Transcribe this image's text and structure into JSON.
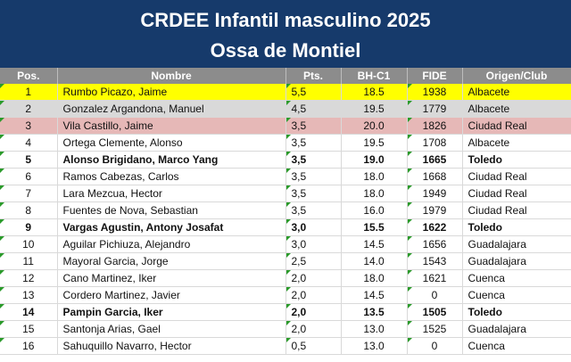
{
  "title": "CRDEE Infantil masculino  2025",
  "subtitle": "Ossa de Montiel",
  "colors": {
    "banner": "#163a6b",
    "header": "#8c8c8c",
    "first": "#ffff00",
    "second": "#d9d9d9",
    "third": "#e6b8b7",
    "marker": "#2a9a2a"
  },
  "headers": {
    "pos": "Pos.",
    "name": "Nombre",
    "pts": "Pts.",
    "bh": "BH-C1",
    "fide": "FIDE",
    "club": "Origen/Club"
  },
  "rows": [
    {
      "pos": "1",
      "name": "Rumbo Picazo, Jaime",
      "pts": "5,5",
      "bh": "18.5",
      "fide": "1938",
      "club": "Albacete",
      "bold": false,
      "hl": "first"
    },
    {
      "pos": "2",
      "name": "Gonzalez Argandona, Manuel",
      "pts": "4,5",
      "bh": "19.5",
      "fide": "1779",
      "club": "Albacete",
      "bold": false,
      "hl": "second"
    },
    {
      "pos": "3",
      "name": "Vila Castillo, Jaime",
      "pts": "3,5",
      "bh": "20.0",
      "fide": "1826",
      "club": "Ciudad Real",
      "bold": false,
      "hl": "third"
    },
    {
      "pos": "4",
      "name": "Ortega Clemente, Alonso",
      "pts": "3,5",
      "bh": "19.5",
      "fide": "1708",
      "club": "Albacete",
      "bold": false,
      "hl": ""
    },
    {
      "pos": "5",
      "name": "Alonso Brigidano, Marco Yang",
      "pts": "3,5",
      "bh": "19.0",
      "fide": "1665",
      "club": "Toledo",
      "bold": true,
      "hl": ""
    },
    {
      "pos": "6",
      "name": "Ramos Cabezas, Carlos",
      "pts": "3,5",
      "bh": "18.0",
      "fide": "1668",
      "club": "Ciudad Real",
      "bold": false,
      "hl": ""
    },
    {
      "pos": "7",
      "name": "Lara Mezcua, Hector",
      "pts": "3,5",
      "bh": "18.0",
      "fide": "1949",
      "club": "Ciudad Real",
      "bold": false,
      "hl": ""
    },
    {
      "pos": "8",
      "name": "Fuentes de Nova, Sebastian",
      "pts": "3,5",
      "bh": "16.0",
      "fide": "1979",
      "club": "Ciudad Real",
      "bold": false,
      "hl": ""
    },
    {
      "pos": "9",
      "name": "Vargas Agustin, Antony Josafat",
      "pts": "3,0",
      "bh": "15.5",
      "fide": "1622",
      "club": "Toledo",
      "bold": true,
      "hl": ""
    },
    {
      "pos": "10",
      "name": "Aguilar Pichiuza, Alejandro",
      "pts": "3,0",
      "bh": "14.5",
      "fide": "1656",
      "club": "Guadalajara",
      "bold": false,
      "hl": ""
    },
    {
      "pos": "11",
      "name": "Mayoral Garcia, Jorge",
      "pts": "2,5",
      "bh": "14.0",
      "fide": "1543",
      "club": "Guadalajara",
      "bold": false,
      "hl": ""
    },
    {
      "pos": "12",
      "name": "Cano Martinez, Iker",
      "pts": "2,0",
      "bh": "18.0",
      "fide": "1621",
      "club": "Cuenca",
      "bold": false,
      "hl": ""
    },
    {
      "pos": "13",
      "name": "Cordero Martinez, Javier",
      "pts": "2,0",
      "bh": "14.5",
      "fide": "0",
      "club": "Cuenca",
      "bold": false,
      "hl": ""
    },
    {
      "pos": "14",
      "name": "Pampin Garcia, Iker",
      "pts": "2,0",
      "bh": "13.5",
      "fide": "1505",
      "club": "Toledo",
      "bold": true,
      "hl": ""
    },
    {
      "pos": "15",
      "name": "Santonja Arias, Gael",
      "pts": "2,0",
      "bh": "13.0",
      "fide": "1525",
      "club": "Guadalajara",
      "bold": false,
      "hl": ""
    },
    {
      "pos": "16",
      "name": "Sahuquillo Navarro, Hector",
      "pts": "0,5",
      "bh": "13.0",
      "fide": "0",
      "club": "Cuenca",
      "bold": false,
      "hl": ""
    }
  ]
}
